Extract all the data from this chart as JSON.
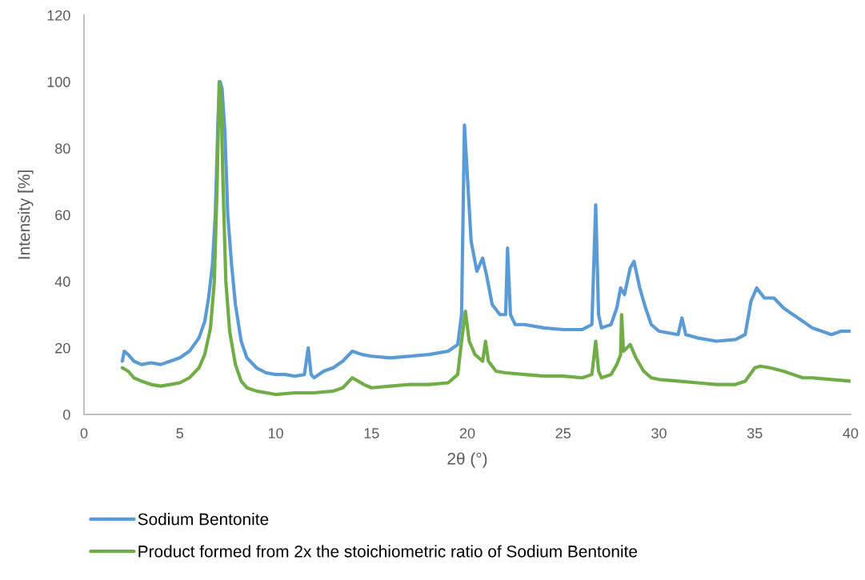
{
  "chart_data": {
    "type": "line",
    "xlabel": "2θ (°)",
    "ylabel": "Intensity [%]",
    "xlim": [
      0,
      40
    ],
    "xticks": [
      0,
      5,
      10,
      15,
      20,
      25,
      30,
      35,
      40
    ],
    "ylim": [
      0,
      120
    ],
    "yticks": [
      0,
      20,
      40,
      60,
      80,
      100,
      120
    ],
    "grid": false,
    "legend": "bottom",
    "marker": "none",
    "line_style": "solid",
    "series": [
      {
        "name": "Sodium Bentonite",
        "color": "#5b9bd5",
        "x": [
          2.0,
          2.1,
          2.3,
          2.6,
          3.0,
          3.5,
          4.0,
          4.5,
          5.0,
          5.5,
          6.0,
          6.3,
          6.5,
          6.7,
          6.85,
          7.0,
          7.1,
          7.2,
          7.35,
          7.5,
          7.7,
          7.9,
          8.2,
          8.5,
          9.0,
          9.5,
          10,
          10.5,
          11,
          11.5,
          11.7,
          11.85,
          12,
          12.5,
          13,
          13.5,
          14,
          14.5,
          15,
          16,
          17,
          18,
          19,
          19.5,
          19.7,
          19.85,
          20.0,
          20.2,
          20.5,
          20.8,
          21.0,
          21.3,
          21.7,
          22.0,
          22.1,
          22.25,
          22.5,
          23,
          24,
          25,
          26,
          26.5,
          26.7,
          26.85,
          27,
          27.5,
          27.8,
          28.0,
          28.2,
          28.5,
          28.7,
          29.0,
          29.3,
          29.6,
          30,
          31,
          31.2,
          31.4,
          32,
          33,
          34,
          34.5,
          34.8,
          35.1,
          35.5,
          36,
          36.5,
          37,
          37.5,
          38,
          38.5,
          39,
          39.5,
          40
        ],
        "values": [
          16,
          19,
          18,
          16,
          15,
          15.5,
          15,
          16,
          17,
          19,
          23,
          28,
          35,
          45,
          60,
          90,
          100,
          98,
          85,
          60,
          45,
          33,
          22,
          17,
          14,
          12.5,
          12,
          12,
          11.5,
          12,
          20,
          12,
          11,
          13,
          14,
          16,
          19,
          18,
          17.5,
          17,
          17.5,
          18,
          19,
          21,
          30,
          87,
          72,
          52,
          43,
          47,
          42,
          33,
          30,
          30,
          50,
          30,
          27,
          27,
          26,
          25.5,
          25.5,
          27,
          63,
          30,
          26,
          27,
          32,
          38,
          36,
          44,
          46,
          38,
          32,
          27,
          25,
          24,
          29,
          24,
          23,
          22,
          22.5,
          24,
          34,
          38,
          35,
          35,
          32,
          30,
          28,
          26,
          25,
          24,
          25,
          25
        ]
      },
      {
        "name": "Product formed from 2x the stoichiometric ratio of Sodium Bentonite",
        "color": "#70ad47",
        "x": [
          2.0,
          2.3,
          2.6,
          3,
          3.5,
          4,
          4.5,
          5,
          5.5,
          6,
          6.3,
          6.6,
          6.8,
          6.95,
          7.05,
          7.15,
          7.25,
          7.4,
          7.6,
          7.9,
          8.2,
          8.5,
          9,
          10,
          11,
          12,
          13,
          13.5,
          14,
          14.3,
          14.6,
          15,
          16,
          17,
          18,
          19,
          19.5,
          19.7,
          19.9,
          20.1,
          20.4,
          20.8,
          20.95,
          21.1,
          21.5,
          22,
          23,
          24,
          25,
          26,
          26.5,
          26.7,
          26.85,
          27,
          27.5,
          27.8,
          28.0,
          28.05,
          28.15,
          28.5,
          28.8,
          29.2,
          29.6,
          30,
          31,
          32,
          33,
          34,
          34.5,
          35,
          35.3,
          35.8,
          36.5,
          37,
          37.5,
          38,
          39,
          40
        ],
        "values": [
          14,
          13,
          11,
          10,
          9,
          8.5,
          9,
          9.5,
          11,
          14,
          18,
          26,
          40,
          70,
          100,
          95,
          70,
          40,
          25,
          15,
          10,
          8,
          7,
          6,
          6.5,
          6.5,
          7,
          8,
          11,
          10,
          9,
          8,
          8.5,
          9,
          9,
          9.5,
          12,
          22,
          31,
          22,
          18,
          16,
          22,
          16,
          13,
          12.5,
          12,
          11.5,
          11.5,
          11,
          12,
          22,
          13,
          11,
          12,
          15,
          18,
          30,
          19,
          21,
          17,
          13,
          11,
          10.5,
          10,
          9.5,
          9,
          9,
          10,
          14,
          14.5,
          14,
          13,
          12,
          11,
          11,
          10.5,
          10
        ]
      }
    ]
  }
}
